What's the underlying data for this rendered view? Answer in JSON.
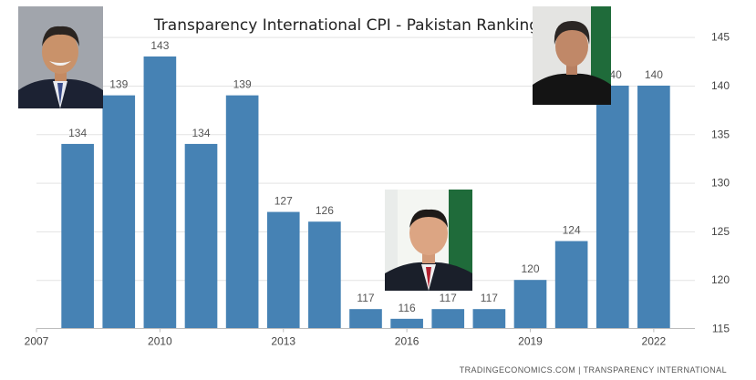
{
  "chart_data": {
    "type": "bar",
    "title": "Transparency International CPI - Pakistan Ranking",
    "xlabel": "",
    "ylabel": "",
    "x": [
      2008,
      2009,
      2010,
      2011,
      2012,
      2013,
      2014,
      2015,
      2016,
      2017,
      2018,
      2019,
      2020,
      2021,
      2022
    ],
    "values": [
      134,
      139,
      143,
      134,
      139,
      127,
      126,
      117,
      116,
      117,
      117,
      120,
      124,
      140,
      140
    ],
    "ylim": [
      115,
      146
    ],
    "yticks": [
      115,
      120,
      125,
      130,
      135,
      140,
      145
    ],
    "xticks": [
      2007,
      2010,
      2013,
      2016,
      2019,
      2022
    ],
    "xlim": [
      2007,
      2023
    ],
    "bar_color": "#4682b4",
    "grid": "horizontal",
    "y_axis_side": "right",
    "data_labels": true
  },
  "source_credit": "TRADINGECONOMICS.COM  |  TRANSPARENCY INTERNATIONAL"
}
